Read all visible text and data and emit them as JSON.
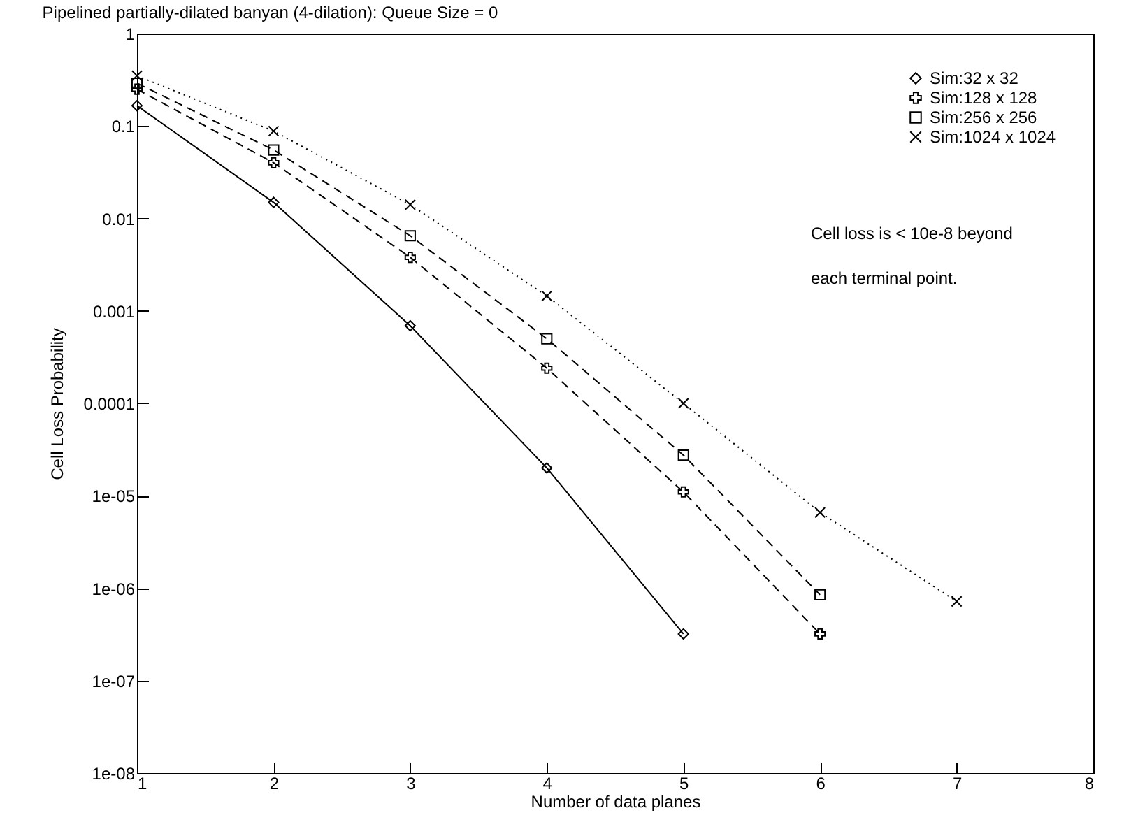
{
  "chart_data": {
    "type": "line",
    "title": "Pipelined partially-dilated banyan (4-dilation): Queue Size = 0",
    "xlabel": "Number of data planes",
    "ylabel": "Cell Loss Probability",
    "x": [
      1,
      2,
      3,
      4,
      5,
      6,
      7
    ],
    "series": [
      {
        "name": "Sim:32 x 32",
        "color": "#000000",
        "marker": "diamond",
        "line_style": "solid",
        "values": [
          0.166,
          0.0149,
          0.00069,
          2e-05,
          3.2e-07,
          null,
          null
        ]
      },
      {
        "name": "Sim:128 x 128",
        "color": "#000000",
        "marker": "plus",
        "line_style": "dashed",
        "values": [
          0.25,
          0.04,
          0.0038,
          0.00024,
          1.1e-05,
          3.2e-07,
          null
        ]
      },
      {
        "name": "Sim:256 x 256",
        "color": "#000000",
        "marker": "square",
        "line_style": "dashed",
        "values": [
          0.29,
          0.055,
          0.0065,
          0.0005,
          2.75e-05,
          8.5e-07,
          null
        ]
      },
      {
        "name": "Sim:1024 x 1024",
        "color": "#000000",
        "marker": "cross",
        "line_style": "dotted",
        "values": [
          0.35,
          0.088,
          0.0141,
          0.00145,
          0.0001,
          6.6e-06,
          7.2e-07
        ]
      }
    ],
    "log": true,
    "xlim": [
      1,
      8
    ],
    "xticks": [
      1,
      2,
      3,
      4,
      5,
      6,
      7,
      8
    ],
    "ylim": [
      1e-08,
      1
    ],
    "yticks": [
      1,
      0.1,
      0.01,
      0.001,
      0.0001,
      {
        "value": 1e-05,
        "label": "1e-05"
      },
      {
        "value": 1e-06,
        "label": "1e-06"
      },
      {
        "value": 1e-07,
        "label": "1e-07"
      },
      {
        "value": 1e-08,
        "label": "1e-08"
      }
    ],
    "legend": "top right",
    "grid": false,
    "annotations": [
      "Cell loss is < 10e-8 beyond",
      "each terminal point."
    ]
  }
}
